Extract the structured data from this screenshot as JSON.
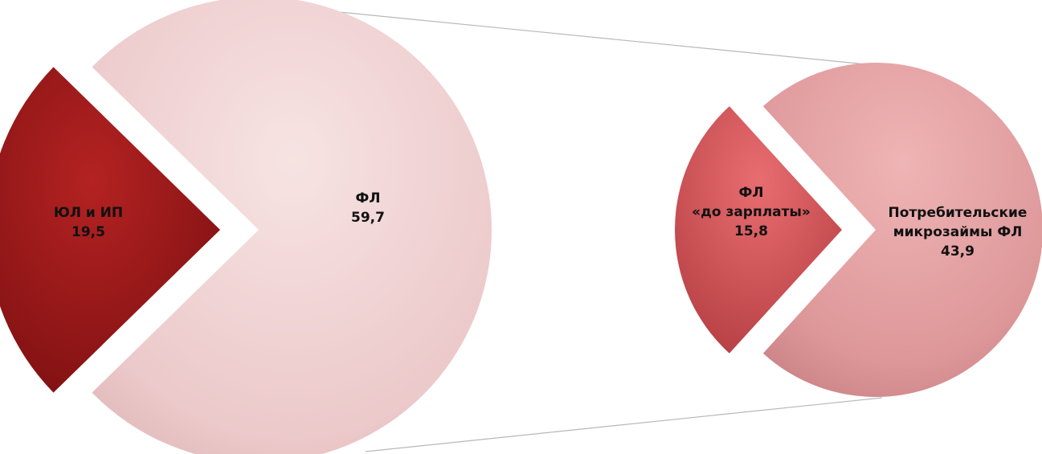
{
  "chart_data": [
    {
      "type": "pie",
      "slices": [
        {
          "label": [
            "ЮЛ и ИП"
          ],
          "value": 19.5,
          "value_text": "19,5",
          "color": "#8e1616"
        },
        {
          "label": [
            "ФЛ"
          ],
          "value": 59.7,
          "value_text": "59,7",
          "color": "#f2cfd0"
        }
      ]
    },
    {
      "type": "pie",
      "slices": [
        {
          "label": [
            "ФЛ",
            "«до зарплаты»"
          ],
          "value": 15.8,
          "value_text": "15,8",
          "color": "#c94a4e"
        },
        {
          "label": [
            "Потребительские",
            "микрозаймы ФЛ"
          ],
          "value": 43.9,
          "value_text": "43,9",
          "color": "#d88e90"
        }
      ]
    }
  ]
}
